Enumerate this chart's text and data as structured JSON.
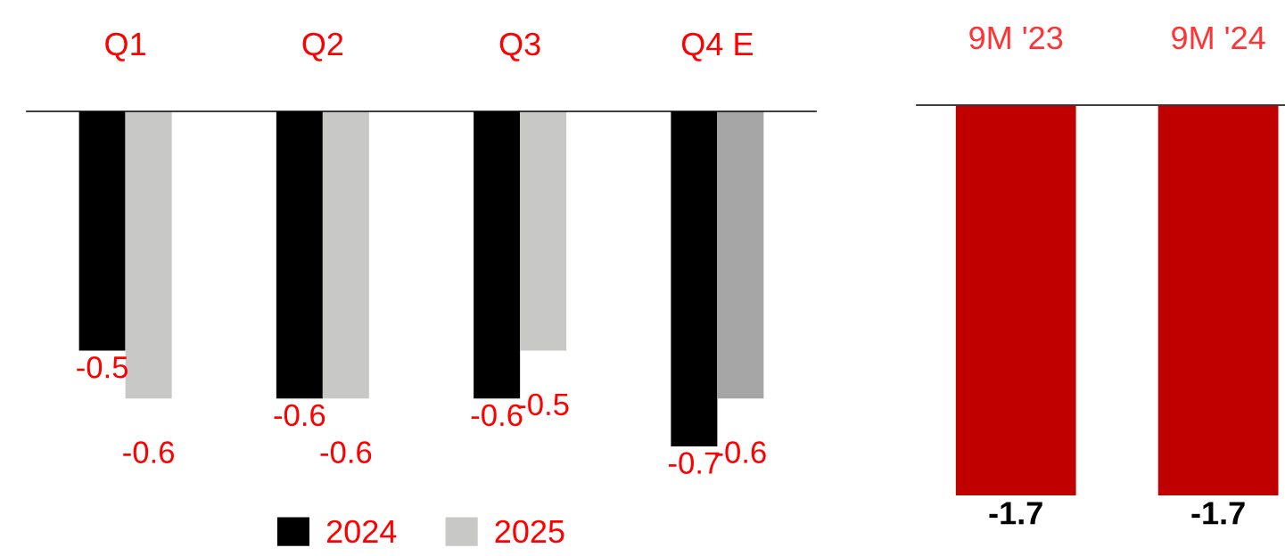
{
  "chart_data": [
    {
      "type": "bar",
      "categories": [
        "Q1",
        "Q2",
        "Q3",
        "Q4 E"
      ],
      "data_labels": true,
      "legend": "bottom",
      "series": [
        {
          "name": "2024",
          "color": "#000000",
          "values": [
            -0.5,
            -0.6,
            -0.6,
            -0.7
          ]
        },
        {
          "name": "2025",
          "colors": [
            "#c8c8c6",
            "#c8c8c6",
            "#c8c8c6",
            "#a6a6a6"
          ],
          "color": "#c8c8c6",
          "values": [
            -0.6,
            -0.6,
            -0.5,
            -0.6
          ]
        }
      ]
    },
    {
      "type": "bar",
      "categories": [
        "9M '23",
        "9M '24"
      ],
      "data_labels": true,
      "series": [
        {
          "color": "#c00000",
          "values": [
            -1.7,
            -1.7
          ]
        }
      ]
    }
  ]
}
